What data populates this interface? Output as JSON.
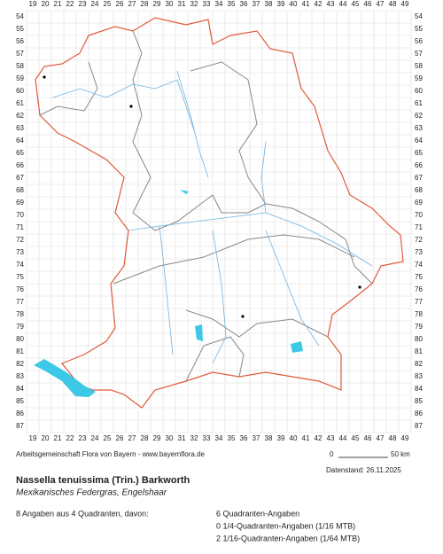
{
  "map": {
    "columns": [
      19,
      20,
      21,
      22,
      23,
      24,
      25,
      26,
      27,
      28,
      29,
      30,
      31,
      32,
      33,
      34,
      35,
      36,
      37,
      38,
      39,
      40,
      41,
      42,
      43,
      44,
      45,
      46,
      47,
      48,
      49
    ],
    "rows": [
      54,
      55,
      56,
      57,
      58,
      59,
      60,
      61,
      62,
      63,
      64,
      65,
      66,
      67,
      68,
      69,
      70,
      71,
      72,
      73,
      74,
      75,
      76,
      77,
      78,
      79,
      80,
      81,
      82,
      83,
      84,
      85,
      86,
      87
    ],
    "credit": "Arbeitsgemeinschaft Flora von Bayern - www.bayernflora.de",
    "scale_start": "0",
    "scale_end": "50 km",
    "date": "Datenstand: 26.11.2025"
  },
  "species": {
    "title": "Nassella tenuissima (Trin.) Barkworth",
    "subtitle": "Mexikanisches Federgras, Engelshaar"
  },
  "summary": {
    "total": "8 Angaben aus 4 Quadranten, davon:",
    "details": [
      "6 Quadranten-Angaben",
      "0 1/4-Quadranten-Angaben (1/16 MTB)",
      "2 1/16-Quadranten-Angaben (1/64 MTB)"
    ]
  }
}
